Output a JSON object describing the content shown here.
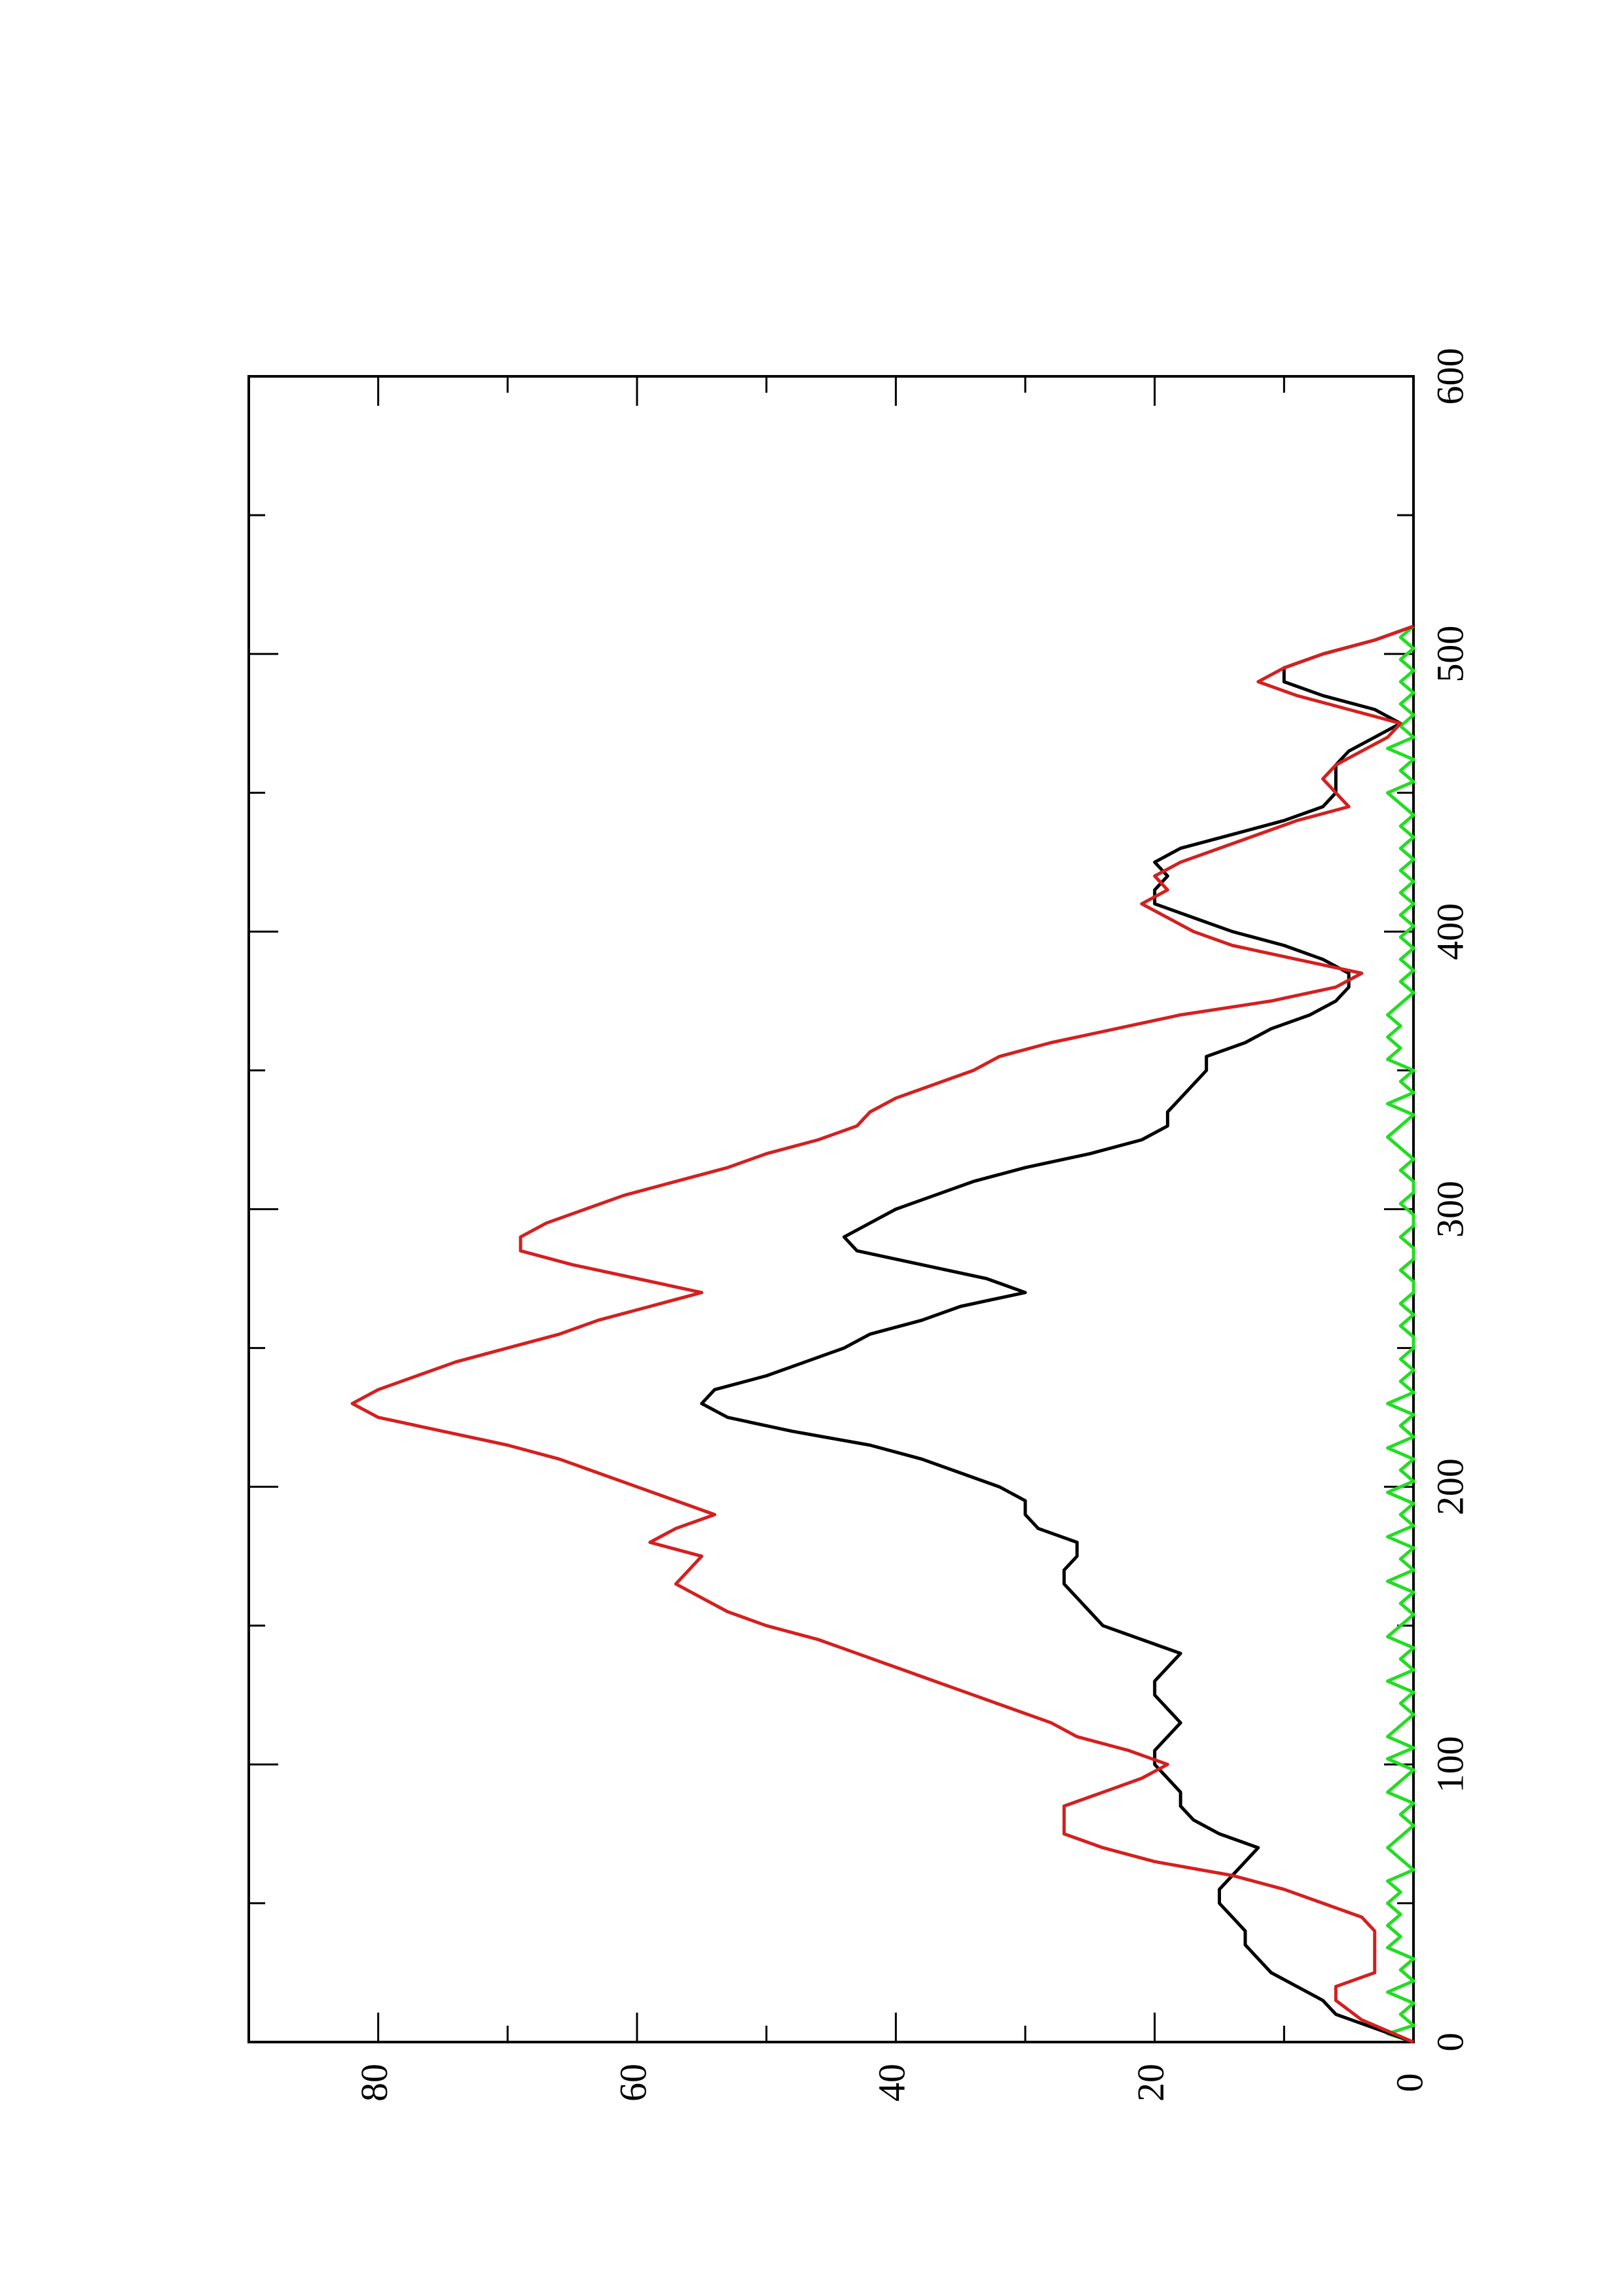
{
  "chart_data": {
    "type": "line",
    "orientation": "rotated-90-ccw",
    "title": "",
    "xlabel": "",
    "ylabel": "",
    "xlim": [
      0,
      600
    ],
    "ylim": [
      0,
      90
    ],
    "x_ticks": [
      0,
      100,
      200,
      300,
      400,
      500,
      600
    ],
    "x_minor_ticks": [
      50,
      150,
      250,
      350,
      450,
      550
    ],
    "y_ticks": [
      0,
      20,
      40,
      60,
      80
    ],
    "y_minor_ticks": [
      10,
      30,
      50,
      70
    ],
    "x_tick_labels": [
      "0",
      "100",
      "200",
      "300",
      "400",
      "500",
      "600"
    ],
    "y_tick_labels": [
      "0",
      "20",
      "40",
      "60",
      "80"
    ],
    "grid": false,
    "legend": "none",
    "series": [
      {
        "color": "#000000",
        "style": "solid",
        "points": [
          [
            0,
            0
          ],
          [
            5,
            3
          ],
          [
            10,
            6
          ],
          [
            15,
            7
          ],
          [
            20,
            9
          ],
          [
            25,
            11
          ],
          [
            30,
            12
          ],
          [
            35,
            13
          ],
          [
            40,
            13
          ],
          [
            45,
            14
          ],
          [
            50,
            15
          ],
          [
            55,
            15
          ],
          [
            60,
            14
          ],
          [
            65,
            13
          ],
          [
            70,
            12
          ],
          [
            75,
            15
          ],
          [
            80,
            17
          ],
          [
            85,
            18
          ],
          [
            90,
            18
          ],
          [
            95,
            19
          ],
          [
            100,
            20
          ],
          [
            105,
            20
          ],
          [
            110,
            19
          ],
          [
            115,
            18
          ],
          [
            120,
            19
          ],
          [
            125,
            20
          ],
          [
            130,
            20
          ],
          [
            135,
            19
          ],
          [
            140,
            18
          ],
          [
            145,
            21
          ],
          [
            150,
            24
          ],
          [
            155,
            25
          ],
          [
            160,
            26
          ],
          [
            165,
            27
          ],
          [
            170,
            27
          ],
          [
            175,
            26
          ],
          [
            180,
            26
          ],
          [
            185,
            29
          ],
          [
            190,
            30
          ],
          [
            195,
            30
          ],
          [
            200,
            32
          ],
          [
            205,
            35
          ],
          [
            210,
            38
          ],
          [
            215,
            42
          ],
          [
            220,
            48
          ],
          [
            225,
            53
          ],
          [
            230,
            55
          ],
          [
            235,
            54
          ],
          [
            240,
            50
          ],
          [
            245,
            47
          ],
          [
            250,
            44
          ],
          [
            255,
            42
          ],
          [
            260,
            38
          ],
          [
            265,
            35
          ],
          [
            270,
            30
          ],
          [
            275,
            33
          ],
          [
            280,
            38
          ],
          [
            285,
            43
          ],
          [
            290,
            44
          ],
          [
            295,
            42
          ],
          [
            300,
            40
          ],
          [
            305,
            37
          ],
          [
            310,
            34
          ],
          [
            315,
            30
          ],
          [
            320,
            25
          ],
          [
            325,
            21
          ],
          [
            330,
            19
          ],
          [
            335,
            19
          ],
          [
            340,
            18
          ],
          [
            345,
            17
          ],
          [
            350,
            16
          ],
          [
            355,
            16
          ],
          [
            360,
            13
          ],
          [
            365,
            11
          ],
          [
            370,
            8
          ],
          [
            375,
            6
          ],
          [
            380,
            5
          ],
          [
            385,
            5
          ],
          [
            390,
            7
          ],
          [
            395,
            10
          ],
          [
            400,
            14
          ],
          [
            405,
            17
          ],
          [
            410,
            20
          ],
          [
            415,
            20
          ],
          [
            420,
            19
          ],
          [
            425,
            20
          ],
          [
            430,
            18
          ],
          [
            435,
            14
          ],
          [
            440,
            10
          ],
          [
            445,
            7
          ],
          [
            450,
            6
          ],
          [
            455,
            6
          ],
          [
            460,
            6
          ],
          [
            465,
            5
          ],
          [
            470,
            3
          ],
          [
            475,
            1
          ],
          [
            480,
            3
          ],
          [
            485,
            7
          ],
          [
            490,
            10
          ],
          [
            495,
            10
          ],
          [
            500,
            7
          ],
          [
            505,
            3
          ],
          [
            510,
            0
          ]
        ]
      },
      {
        "color": "#d42020",
        "style": "solid",
        "points": [
          [
            0,
            0
          ],
          [
            8,
            4
          ],
          [
            15,
            6
          ],
          [
            20,
            6
          ],
          [
            25,
            3
          ],
          [
            30,
            3
          ],
          [
            35,
            3
          ],
          [
            40,
            3
          ],
          [
            45,
            4
          ],
          [
            50,
            7
          ],
          [
            55,
            10
          ],
          [
            60,
            14
          ],
          [
            65,
            20
          ],
          [
            70,
            24
          ],
          [
            75,
            27
          ],
          [
            80,
            27
          ],
          [
            85,
            27
          ],
          [
            90,
            24
          ],
          [
            95,
            21
          ],
          [
            100,
            19
          ],
          [
            105,
            22
          ],
          [
            110,
            26
          ],
          [
            115,
            28
          ],
          [
            120,
            31
          ],
          [
            125,
            34
          ],
          [
            130,
            37
          ],
          [
            135,
            40
          ],
          [
            140,
            43
          ],
          [
            145,
            46
          ],
          [
            150,
            50
          ],
          [
            155,
            53
          ],
          [
            160,
            55
          ],
          [
            165,
            57
          ],
          [
            170,
            56
          ],
          [
            175,
            55
          ],
          [
            180,
            59
          ],
          [
            185,
            57
          ],
          [
            190,
            54
          ],
          [
            195,
            57
          ],
          [
            200,
            60
          ],
          [
            205,
            63
          ],
          [
            210,
            66
          ],
          [
            215,
            70
          ],
          [
            220,
            75
          ],
          [
            225,
            80
          ],
          [
            230,
            82
          ],
          [
            235,
            80
          ],
          [
            240,
            77
          ],
          [
            245,
            74
          ],
          [
            250,
            70
          ],
          [
            255,
            66
          ],
          [
            260,
            63
          ],
          [
            265,
            59
          ],
          [
            270,
            55
          ],
          [
            275,
            60
          ],
          [
            280,
            65
          ],
          [
            285,
            69
          ],
          [
            290,
            69
          ],
          [
            295,
            67
          ],
          [
            300,
            64
          ],
          [
            305,
            61
          ],
          [
            310,
            57
          ],
          [
            315,
            53
          ],
          [
            320,
            50
          ],
          [
            325,
            46
          ],
          [
            330,
            43
          ],
          [
            335,
            42
          ],
          [
            340,
            40
          ],
          [
            345,
            37
          ],
          [
            350,
            34
          ],
          [
            355,
            32
          ],
          [
            360,
            28
          ],
          [
            365,
            23
          ],
          [
            370,
            18
          ],
          [
            375,
            11
          ],
          [
            380,
            6
          ],
          [
            385,
            4
          ],
          [
            390,
            9
          ],
          [
            395,
            14
          ],
          [
            400,
            17
          ],
          [
            405,
            19
          ],
          [
            410,
            21
          ],
          [
            415,
            19
          ],
          [
            420,
            20
          ],
          [
            425,
            18
          ],
          [
            430,
            15
          ],
          [
            435,
            12
          ],
          [
            440,
            9
          ],
          [
            445,
            5
          ],
          [
            450,
            6
          ],
          [
            455,
            7
          ],
          [
            460,
            6
          ],
          [
            465,
            4
          ],
          [
            470,
            2
          ],
          [
            475,
            1
          ],
          [
            480,
            5
          ],
          [
            485,
            9
          ],
          [
            490,
            12
          ],
          [
            495,
            10
          ],
          [
            500,
            7
          ],
          [
            505,
            3
          ],
          [
            510,
            0
          ]
        ]
      },
      {
        "color": "#22dd22",
        "style": "solid",
        "points": [
          [
            0,
            0
          ],
          [
            3,
            2
          ],
          [
            6,
            0
          ],
          [
            10,
            1
          ],
          [
            14,
            0
          ],
          [
            18,
            2
          ],
          [
            22,
            0
          ],
          [
            26,
            1
          ],
          [
            30,
            0
          ],
          [
            34,
            2
          ],
          [
            38,
            1
          ],
          [
            42,
            2
          ],
          [
            46,
            1
          ],
          [
            50,
            2
          ],
          [
            54,
            1
          ],
          [
            58,
            2
          ],
          [
            62,
            0
          ],
          [
            66,
            1
          ],
          [
            70,
            2
          ],
          [
            74,
            1
          ],
          [
            78,
            0
          ],
          [
            82,
            1
          ],
          [
            86,
            0
          ],
          [
            90,
            2
          ],
          [
            94,
            1
          ],
          [
            98,
            0
          ],
          [
            102,
            2
          ],
          [
            106,
            0
          ],
          [
            110,
            2
          ],
          [
            114,
            1
          ],
          [
            118,
            0
          ],
          [
            122,
            1
          ],
          [
            126,
            0
          ],
          [
            130,
            2
          ],
          [
            134,
            0
          ],
          [
            138,
            1
          ],
          [
            142,
            0
          ],
          [
            146,
            2
          ],
          [
            150,
            1
          ],
          [
            154,
            0
          ],
          [
            158,
            1
          ],
          [
            162,
            0
          ],
          [
            166,
            2
          ],
          [
            170,
            0
          ],
          [
            174,
            1
          ],
          [
            178,
            0
          ],
          [
            182,
            2
          ],
          [
            186,
            0
          ],
          [
            190,
            1
          ],
          [
            194,
            0
          ],
          [
            198,
            2
          ],
          [
            202,
            0
          ],
          [
            206,
            1
          ],
          [
            210,
            0
          ],
          [
            214,
            2
          ],
          [
            218,
            0
          ],
          [
            222,
            1
          ],
          [
            226,
            0
          ],
          [
            230,
            2
          ],
          [
            234,
            0
          ],
          [
            238,
            1
          ],
          [
            242,
            0
          ],
          [
            246,
            1
          ],
          [
            250,
            0
          ],
          [
            254,
            0
          ],
          [
            258,
            1
          ],
          [
            262,
            0
          ],
          [
            266,
            1
          ],
          [
            270,
            0
          ],
          [
            274,
            0
          ],
          [
            278,
            1
          ],
          [
            282,
            0
          ],
          [
            286,
            0
          ],
          [
            290,
            1
          ],
          [
            294,
            0
          ],
          [
            298,
            0
          ],
          [
            302,
            1
          ],
          [
            306,
            0
          ],
          [
            310,
            0
          ],
          [
            314,
            1
          ],
          [
            318,
            0
          ],
          [
            322,
            1
          ],
          [
            326,
            2
          ],
          [
            330,
            1
          ],
          [
            334,
            0
          ],
          [
            338,
            2
          ],
          [
            342,
            0
          ],
          [
            346,
            1
          ],
          [
            350,
            0
          ],
          [
            354,
            2
          ],
          [
            358,
            1
          ],
          [
            362,
            2
          ],
          [
            366,
            1
          ],
          [
            370,
            2
          ],
          [
            374,
            1
          ],
          [
            378,
            0
          ],
          [
            382,
            1
          ],
          [
            386,
            0
          ],
          [
            390,
            1
          ],
          [
            394,
            0
          ],
          [
            398,
            1
          ],
          [
            402,
            0
          ],
          [
            406,
            1
          ],
          [
            410,
            0
          ],
          [
            414,
            1
          ],
          [
            418,
            0
          ],
          [
            422,
            1
          ],
          [
            426,
            0
          ],
          [
            430,
            1
          ],
          [
            434,
            0
          ],
          [
            438,
            1
          ],
          [
            442,
            0
          ],
          [
            446,
            1
          ],
          [
            450,
            2
          ],
          [
            454,
            0
          ],
          [
            458,
            1
          ],
          [
            462,
            0
          ],
          [
            466,
            2
          ],
          [
            470,
            0
          ],
          [
            474,
            1
          ],
          [
            478,
            0
          ],
          [
            482,
            1
          ],
          [
            486,
            0
          ],
          [
            490,
            1
          ],
          [
            494,
            0
          ],
          [
            498,
            1
          ],
          [
            502,
            0
          ],
          [
            506,
            1
          ],
          [
            510,
            0
          ]
        ]
      }
    ]
  }
}
